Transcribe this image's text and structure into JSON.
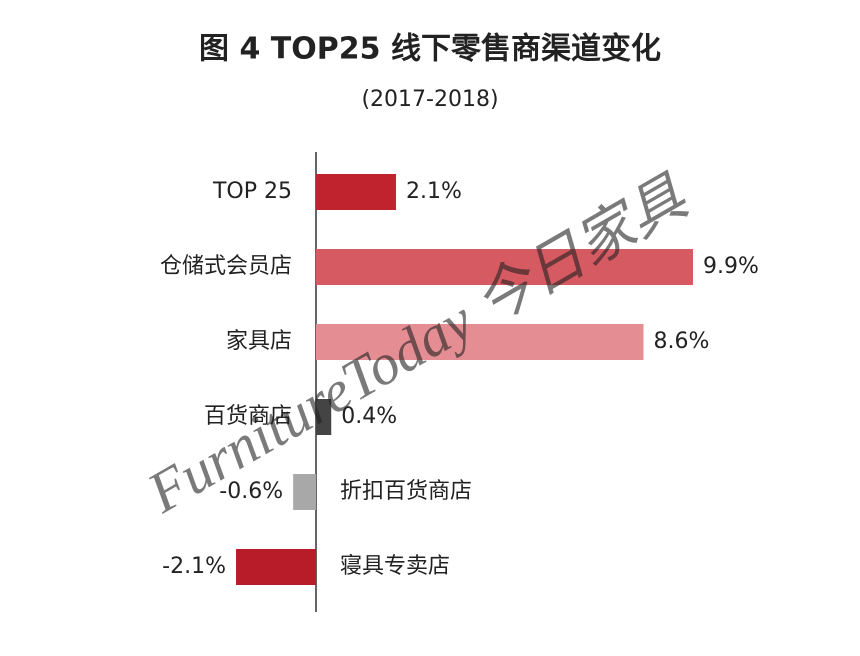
{
  "chart_data": {
    "type": "bar",
    "orientation": "horizontal",
    "title": "图 4  TOP25 线下零售商渠道变化",
    "subtitle": "(2017-2018)",
    "watermark": "FurnitureToday 今日家具",
    "categories": [
      "TOP 25",
      "仓储式会员店",
      "家具店",
      "百货商店",
      "折扣百货商店",
      "寝具专卖店"
    ],
    "values": [
      2.1,
      9.9,
      8.6,
      0.4,
      -0.6,
      -2.1
    ],
    "value_labels": [
      "2.1%",
      "9.9%",
      "8.6%",
      "0.4%",
      "-0.6%",
      "-2.1%"
    ],
    "colors": [
      "#c0232e",
      "#d65a62",
      "#e48e94",
      "#444444",
      "#a8a8a8",
      "#b71c28"
    ]
  }
}
